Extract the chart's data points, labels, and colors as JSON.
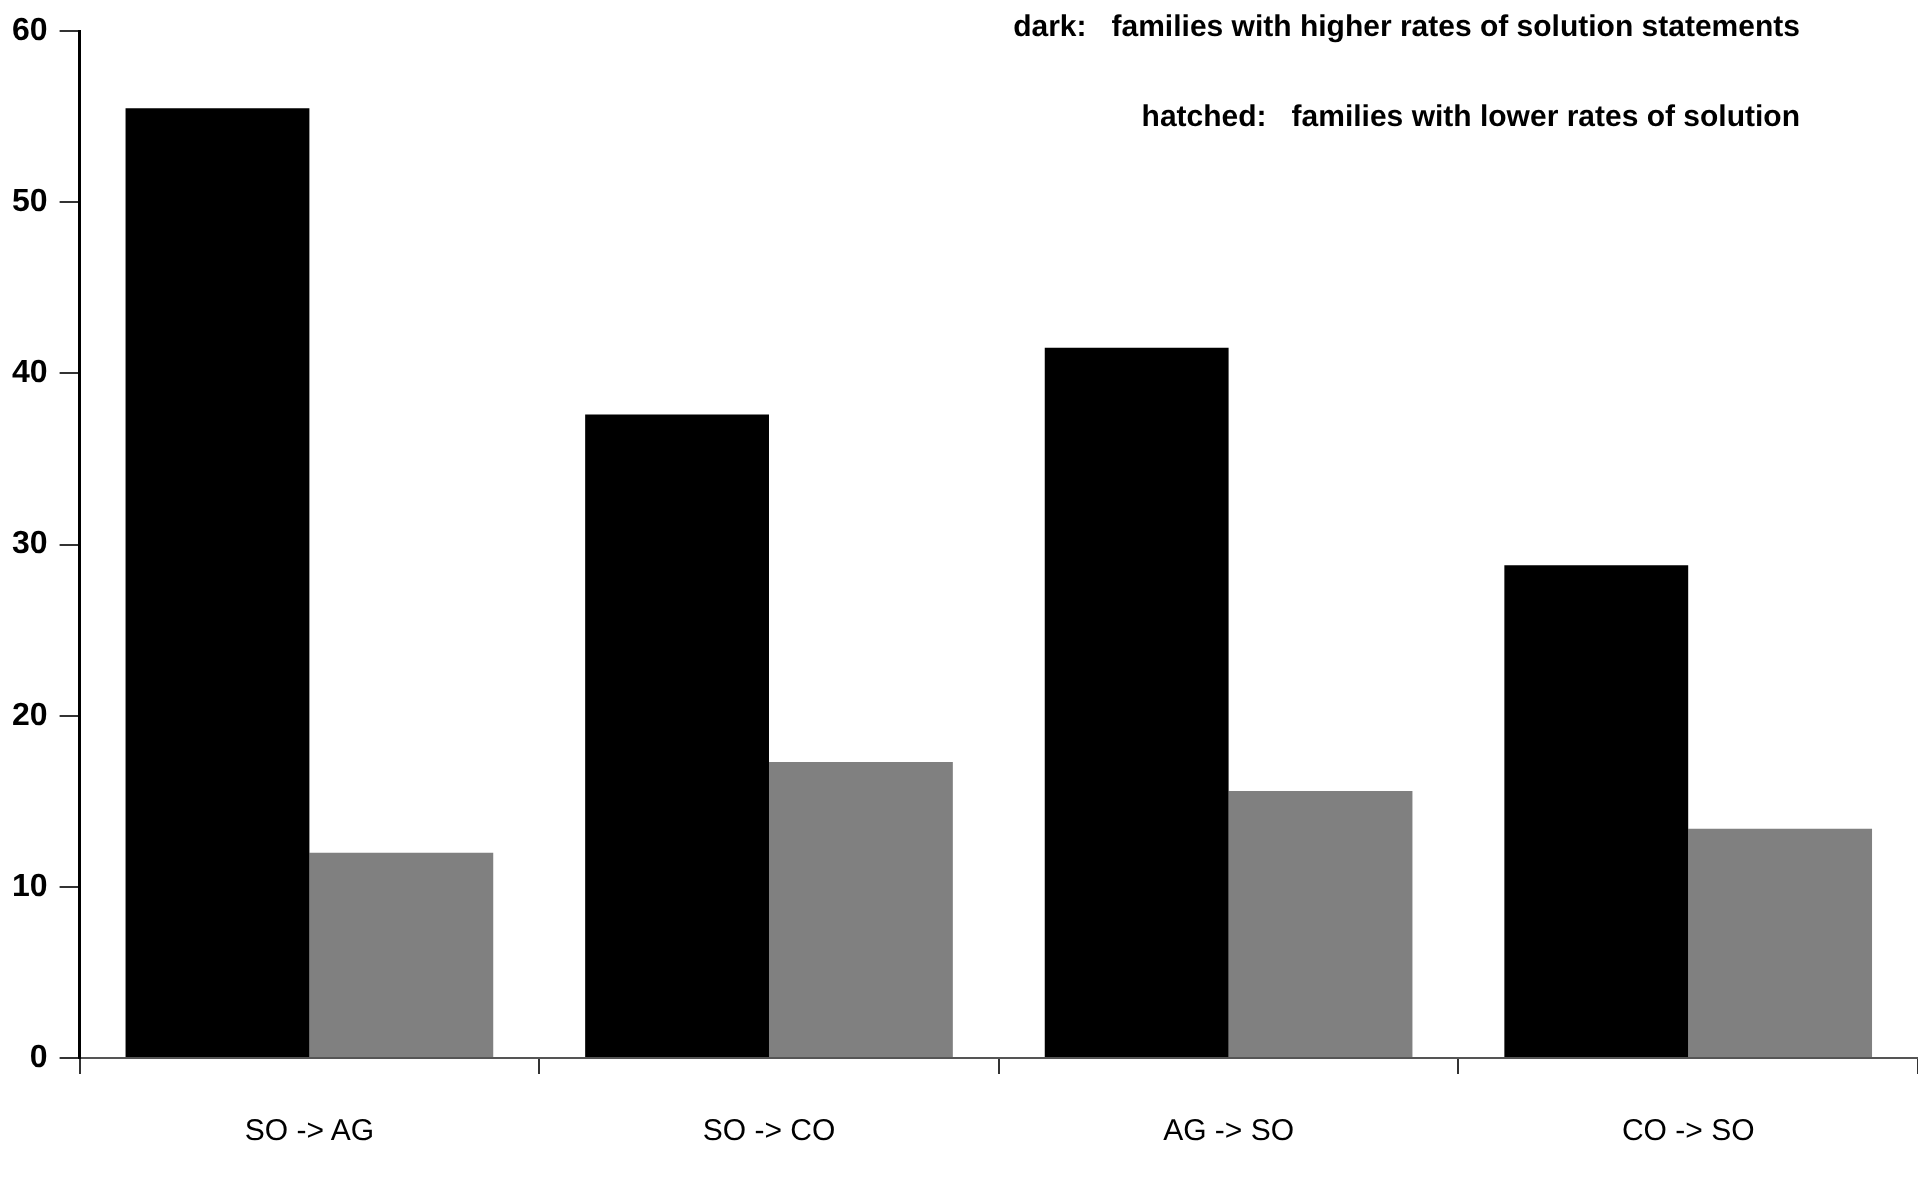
{
  "chart_data": {
    "type": "bar",
    "categories": [
      "SO -> AG",
      "SO -> CO",
      "AG -> SO",
      "CO -> SO"
    ],
    "series": [
      {
        "color": "#000000",
        "values": [
          55.5,
          37.6,
          41.5,
          28.8
        ]
      },
      {
        "color": "#808080",
        "values": [
          12.0,
          17.3,
          15.6,
          13.4
        ]
      }
    ],
    "ylim": [
      0,
      60
    ],
    "yticks": [
      0,
      10,
      20,
      30,
      40,
      50,
      60
    ],
    "grid": false,
    "legend": false,
    "annotations": [
      "dark:   families with higher rates of solution statements",
      "hatched:   families with lower rates of solution"
    ]
  }
}
